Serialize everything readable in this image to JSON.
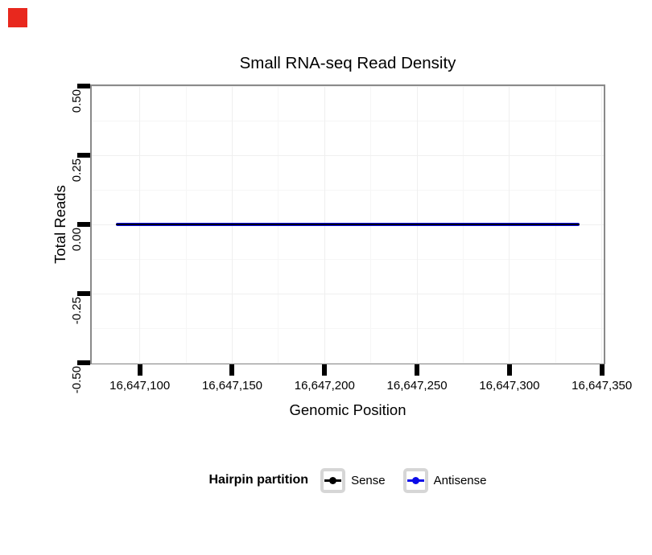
{
  "page": {
    "background": "#ffffff",
    "marker_color": "#e8281e"
  },
  "chart_data": {
    "type": "line",
    "title": "Small RNA-seq Read Density",
    "xlabel": "Genomic Position",
    "ylabel": "Total Reads",
    "xlim": [
      16647074,
      16647351
    ],
    "ylim": [
      -0.5,
      0.5
    ],
    "grid": {
      "major": true,
      "minor": true
    },
    "panel_border_color": "#8a8a8a",
    "x_ticks": [
      {
        "value": 16647100,
        "label": "16,647,100"
      },
      {
        "value": 16647150,
        "label": "16,647,150"
      },
      {
        "value": 16647200,
        "label": "16,647,200"
      },
      {
        "value": 16647250,
        "label": "16,647,250"
      },
      {
        "value": 16647300,
        "label": "16,647,300"
      },
      {
        "value": 16647350,
        "label": "16,647,350"
      }
    ],
    "y_ticks": [
      {
        "value": 0.5,
        "label": "0.50"
      },
      {
        "value": 0.25,
        "label": "0.25"
      },
      {
        "value": 0,
        "label": "0.00"
      },
      {
        "value": -0.25,
        "label": "-0.25"
      },
      {
        "value": -0.5,
        "label": "-0.50"
      }
    ],
    "series": [
      {
        "name": "Antisense",
        "color": "#0b0be8",
        "x": [
          16647087,
          16647338
        ],
        "y": [
          0,
          0
        ],
        "width": 4
      },
      {
        "name": "Sense",
        "color": "#000000",
        "x": [
          16647087,
          16647338
        ],
        "y": [
          0,
          0
        ],
        "width": 2
      }
    ],
    "legend": {
      "title": "Hairpin partition",
      "position": "bottom",
      "entries": [
        {
          "label": "Sense",
          "color": "#000000"
        },
        {
          "label": "Antisense",
          "color": "#0b0be8"
        }
      ]
    }
  }
}
